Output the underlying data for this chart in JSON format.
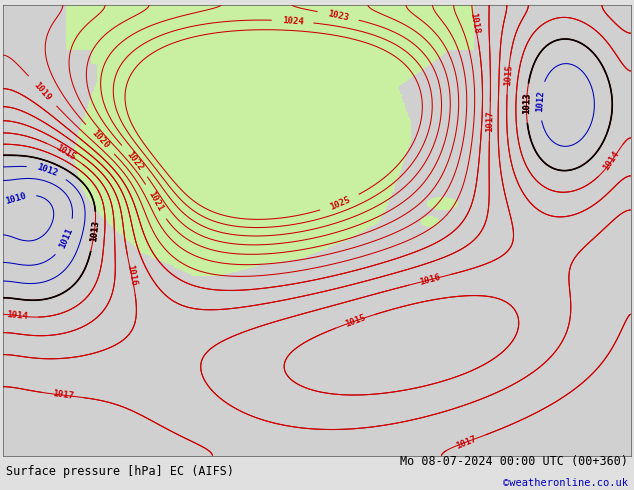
{
  "title_left": "Surface pressure [hPa] EC (AIFS)",
  "title_right": "Mo 08-07-2024 00:00 UTC (00+360)",
  "credit": "©weatheronline.co.uk",
  "bg_color": "#e0e0e0",
  "land_color": "#c8f0a0",
  "sea_color": "#d0d0d0",
  "contour_color_red": "#cc0000",
  "contour_color_blue": "#0000bb",
  "contour_color_black": "#000000",
  "label_fontsize": 6.5,
  "title_fontsize": 8.5,
  "credit_fontsize": 7.5,
  "figsize": [
    6.34,
    4.9
  ],
  "dpi": 100
}
